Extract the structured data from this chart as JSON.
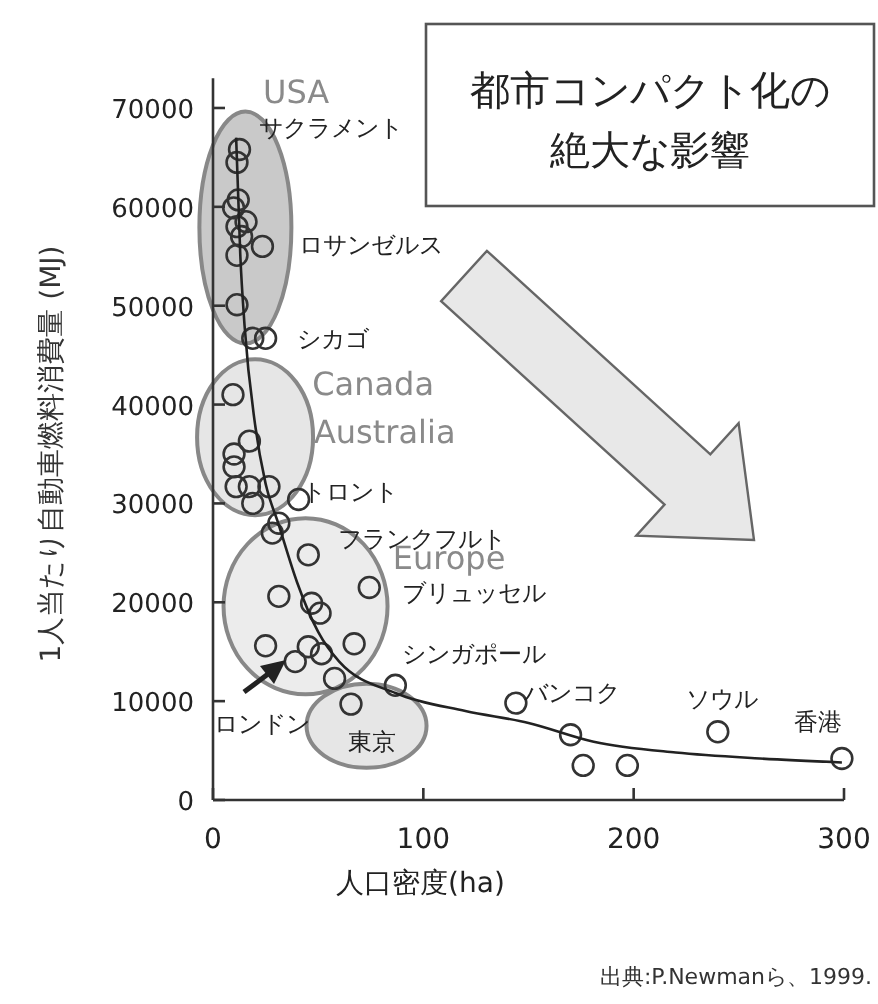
{
  "chart_data": {
    "type": "scatter",
    "title": "都市コンパクト化の絶大な影響",
    "xlabel": "人口密度(ha)",
    "ylabel": "1人当たり自動車燃料消費量 (MJ)",
    "xlim": [
      0,
      300
    ],
    "xticks": [
      0,
      100,
      200,
      300
    ],
    "ylim": [
      0,
      73000
    ],
    "yticks": [
      0,
      10000,
      20000,
      30000,
      40000,
      50000,
      60000,
      70000
    ],
    "grid": false,
    "legend": false,
    "series": [
      {
        "color": "#333333",
        "marker": "circle",
        "x": [
          12.6,
          11.4,
          12,
          9.8,
          15.7,
          11.4,
          13.6,
          23.5,
          11.4,
          11.4,
          18.9,
          25,
          9.5,
          17.3,
          10,
          10,
          11,
          17.3,
          26.6,
          18.9,
          40.7,
          31.3,
          28.2,
          45.3,
          74.3,
          31.3,
          46.9,
          50.9,
          25,
          67.1,
          45.3,
          51.6,
          39.1,
          57.8,
          86.7,
          65.6,
          144,
          170,
          176,
          197,
          240,
          299
        ],
        "values": [
          65800,
          64500,
          60700,
          59900,
          58500,
          58000,
          57000,
          56000,
          55100,
          50100,
          46700,
          46700,
          41000,
          36300,
          35000,
          33700,
          31700,
          31700,
          31700,
          30000,
          30400,
          28000,
          27000,
          24800,
          21500,
          20600,
          19900,
          18900,
          15600,
          15800,
          15500,
          14800,
          14000,
          12300,
          11600,
          9700,
          9800,
          6600,
          3500,
          3500,
          6900,
          4200
        ]
      },
      {
        "type": "line",
        "color": "#222222",
        "marker": "none",
        "line_style": "solid",
        "x": [
          11,
          13,
          15,
          20,
          25,
          31,
          40,
          50,
          60,
          87,
          120,
          150,
          181,
          220,
          260,
          299
        ],
        "values": [
          67000,
          55000,
          48000,
          38000,
          32000,
          28000,
          22000,
          17000,
          14000,
          10800,
          9000,
          7800,
          5900,
          4800,
          4200,
          3800
        ]
      }
    ],
    "annotations": [
      "USA",
      "サクラメント",
      "ロサンゼルス",
      "シカゴ",
      "Canada",
      "Australia",
      "トロント",
      "Europe",
      "フランクフルト",
      "ブリュッセル",
      "シンガポール",
      "バンコク",
      "ソウル",
      "香港",
      "ロンドン",
      "東京",
      "出典:P.Newmanら、1999."
    ]
  }
}
